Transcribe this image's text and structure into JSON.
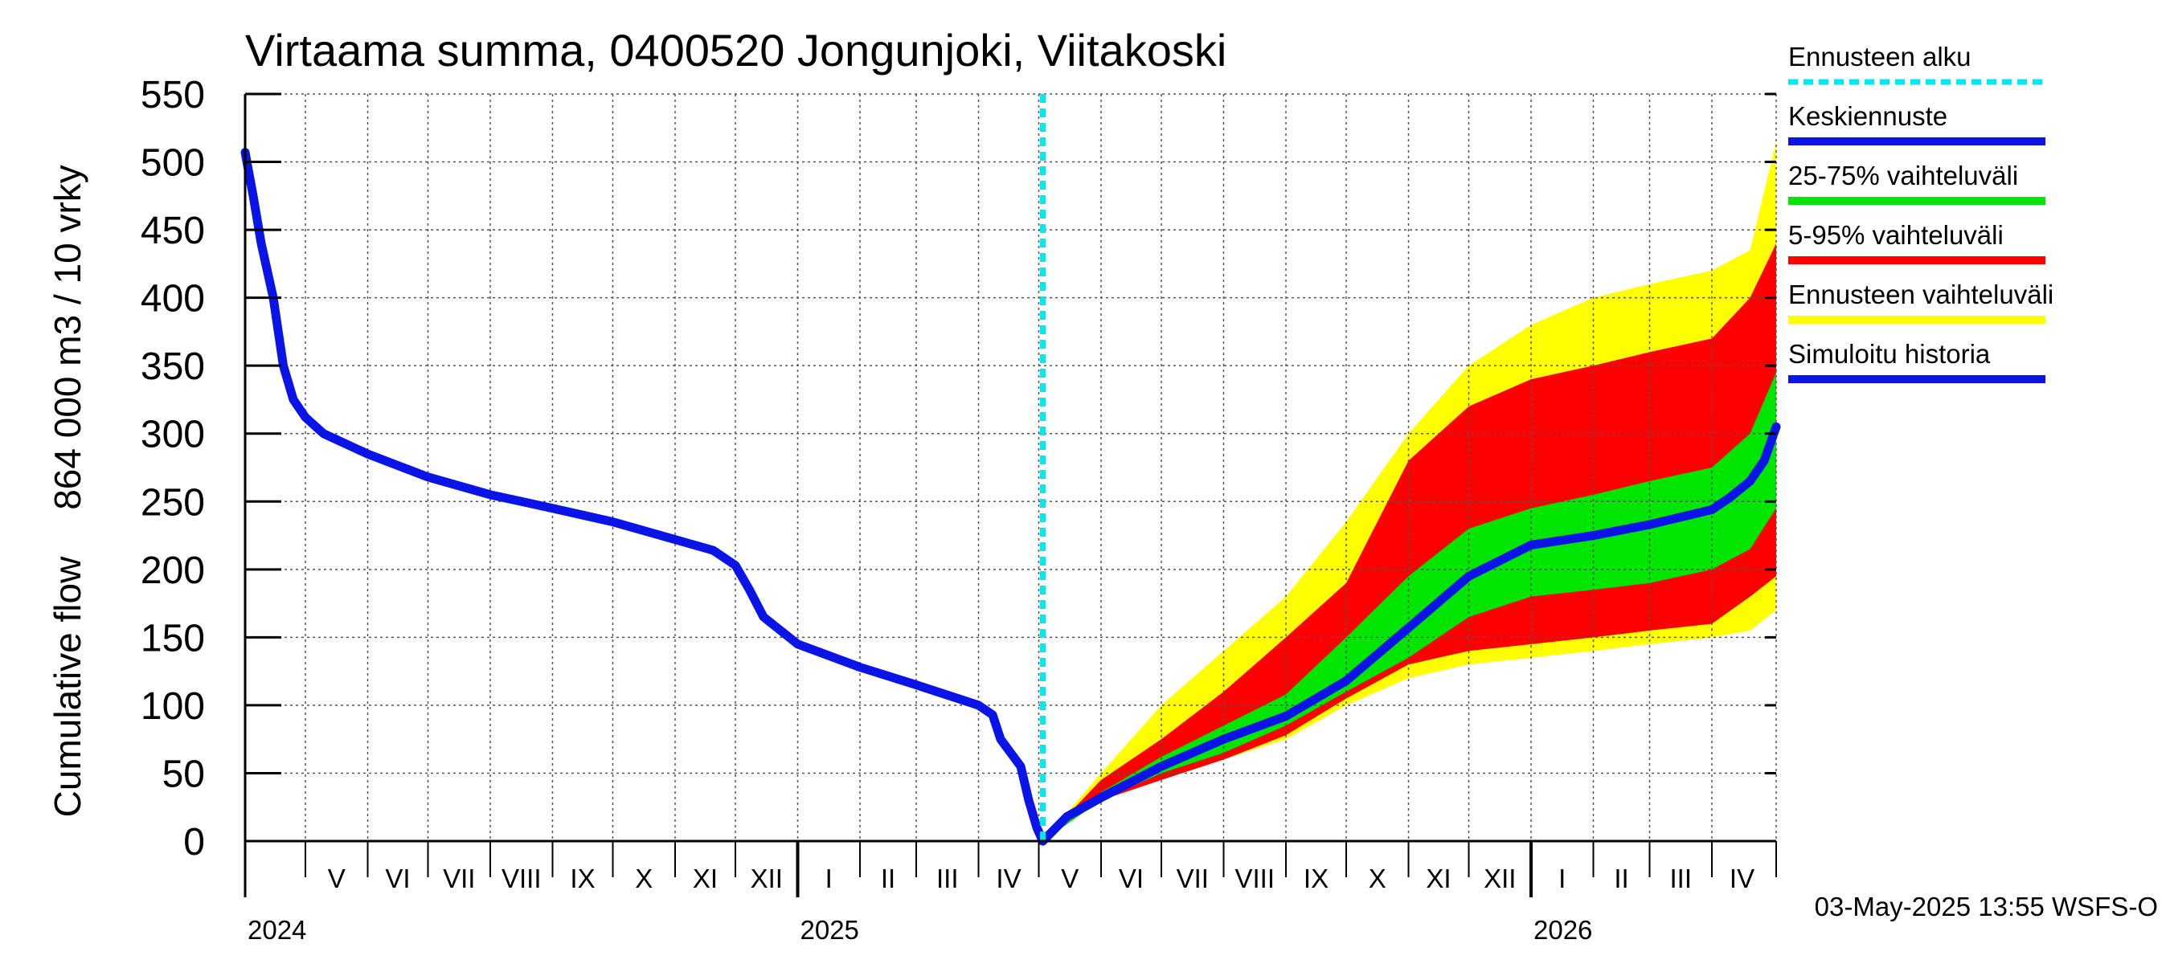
{
  "chart_data": {
    "type": "area",
    "title": "Virtaama summa, 0400520 Jongunjoki, Viitakoski",
    "ylabel_line1": "864 000 m3 / 10 vrky",
    "ylabel_line2": "Cumulative flow",
    "ylim": [
      0,
      550
    ],
    "yticks": [
      0,
      50,
      100,
      150,
      200,
      250,
      300,
      350,
      400,
      450,
      500,
      550
    ],
    "grid": true,
    "x_range": [
      "2024-04-01",
      "2026-05-03"
    ],
    "forecast_start": "2025-05-03",
    "months": [
      {
        "label": "V",
        "start": "2024-05-01",
        "end": "2024-06-01"
      },
      {
        "label": "VI",
        "start": "2024-06-01",
        "end": "2024-07-01"
      },
      {
        "label": "VII",
        "start": "2024-07-01",
        "end": "2024-08-01"
      },
      {
        "label": "VIII",
        "start": "2024-08-01",
        "end": "2024-09-01"
      },
      {
        "label": "IX",
        "start": "2024-09-01",
        "end": "2024-10-01"
      },
      {
        "label": "X",
        "start": "2024-10-01",
        "end": "2024-11-01"
      },
      {
        "label": "XI",
        "start": "2024-11-01",
        "end": "2024-12-01"
      },
      {
        "label": "XII",
        "start": "2024-12-01",
        "end": "2025-01-01"
      },
      {
        "label": "I",
        "start": "2025-01-01",
        "end": "2025-02-01"
      },
      {
        "label": "II",
        "start": "2025-02-01",
        "end": "2025-03-01"
      },
      {
        "label": "III",
        "start": "2025-03-01",
        "end": "2025-04-01"
      },
      {
        "label": "IV",
        "start": "2025-04-01",
        "end": "2025-05-01"
      },
      {
        "label": "V",
        "start": "2025-05-01",
        "end": "2025-06-01"
      },
      {
        "label": "VI",
        "start": "2025-06-01",
        "end": "2025-07-01"
      },
      {
        "label": "VII",
        "start": "2025-07-01",
        "end": "2025-08-01"
      },
      {
        "label": "VIII",
        "start": "2025-08-01",
        "end": "2025-09-01"
      },
      {
        "label": "IX",
        "start": "2025-09-01",
        "end": "2025-10-01"
      },
      {
        "label": "X",
        "start": "2025-10-01",
        "end": "2025-11-01"
      },
      {
        "label": "XI",
        "start": "2025-11-01",
        "end": "2025-12-01"
      },
      {
        "label": "XII",
        "start": "2025-12-01",
        "end": "2026-01-01"
      },
      {
        "label": "I",
        "start": "2026-01-01",
        "end": "2026-02-01"
      },
      {
        "label": "II",
        "start": "2026-02-01",
        "end": "2026-03-01"
      },
      {
        "label": "III",
        "start": "2026-03-01",
        "end": "2026-04-01"
      },
      {
        "label": "IV",
        "start": "2026-04-01",
        "end": "2026-05-01"
      }
    ],
    "years": [
      {
        "label": "2024",
        "date": "2024-04-01"
      },
      {
        "label": "2025",
        "date": "2025-01-01"
      },
      {
        "label": "2026",
        "date": "2026-01-01"
      }
    ],
    "legend": [
      {
        "label": "Ennusteen alku",
        "color": "#00e8f0",
        "style": "dashed"
      },
      {
        "label": "Keskiennuste",
        "color": "#0a14e6",
        "style": "solid"
      },
      {
        "label": "25-75% vaihteluväli",
        "color": "#00e600",
        "style": "solid"
      },
      {
        "label": "5-95% vaihteluväli",
        "color": "#ff0000",
        "style": "solid"
      },
      {
        "label": "Ennusteen vaihteluväli",
        "color": "#ffff00",
        "style": "solid"
      },
      {
        "label": "Simuloitu historia",
        "color": "#0a14e6",
        "style": "solid"
      }
    ],
    "series": [
      {
        "name": "Simuloitu historia",
        "color": "#0a14e6",
        "points": [
          [
            "2024-04-01",
            507
          ],
          [
            "2024-04-05",
            475
          ],
          [
            "2024-04-09",
            440
          ],
          [
            "2024-04-15",
            400
          ],
          [
            "2024-04-20",
            350
          ],
          [
            "2024-04-25",
            325
          ],
          [
            "2024-05-01",
            312
          ],
          [
            "2024-05-10",
            300
          ],
          [
            "2024-06-01",
            285
          ],
          [
            "2024-07-01",
            268
          ],
          [
            "2024-08-01",
            255
          ],
          [
            "2024-09-01",
            245
          ],
          [
            "2024-10-01",
            235
          ],
          [
            "2024-11-01",
            222
          ],
          [
            "2024-11-20",
            214
          ],
          [
            "2024-12-01",
            203
          ],
          [
            "2024-12-08",
            185
          ],
          [
            "2024-12-15",
            165
          ],
          [
            "2025-01-01",
            145
          ],
          [
            "2025-02-01",
            128
          ],
          [
            "2025-03-01",
            115
          ],
          [
            "2025-04-01",
            100
          ],
          [
            "2025-04-08",
            93
          ],
          [
            "2025-04-12",
            75
          ],
          [
            "2025-04-17",
            65
          ],
          [
            "2025-04-22",
            55
          ],
          [
            "2025-04-26",
            30
          ],
          [
            "2025-04-30",
            10
          ],
          [
            "2025-05-03",
            0
          ]
        ]
      },
      {
        "name": "Keskiennuste",
        "color": "#0a14e6",
        "points": [
          [
            "2025-05-03",
            0
          ],
          [
            "2025-05-15",
            18
          ],
          [
            "2025-06-01",
            32
          ],
          [
            "2025-07-01",
            55
          ],
          [
            "2025-08-01",
            75
          ],
          [
            "2025-09-01",
            92
          ],
          [
            "2025-10-01",
            118
          ],
          [
            "2025-11-01",
            157
          ],
          [
            "2025-12-01",
            195
          ],
          [
            "2026-01-01",
            218
          ],
          [
            "2026-02-01",
            225
          ],
          [
            "2026-03-01",
            233
          ],
          [
            "2026-04-01",
            244
          ],
          [
            "2026-04-10",
            253
          ],
          [
            "2026-04-20",
            265
          ],
          [
            "2026-04-27",
            280
          ],
          [
            "2026-05-03",
            305
          ]
        ]
      }
    ],
    "bands": [
      {
        "name": "Ennusteen vaihteluväli",
        "color": "#ffff00",
        "points": [
          [
            "2025-05-03",
            0,
            0
          ],
          [
            "2025-06-01",
            38,
            50
          ],
          [
            "2025-07-01",
            50,
            100
          ],
          [
            "2025-08-01",
            60,
            140
          ],
          [
            "2025-09-01",
            75,
            180
          ],
          [
            "2025-10-01",
            100,
            235
          ],
          [
            "2025-11-01",
            120,
            300
          ],
          [
            "2025-12-01",
            130,
            350
          ],
          [
            "2026-01-01",
            135,
            380
          ],
          [
            "2026-02-01",
            140,
            400
          ],
          [
            "2026-03-01",
            145,
            410
          ],
          [
            "2026-04-01",
            150,
            420
          ],
          [
            "2026-04-20",
            155,
            435
          ],
          [
            "2026-05-03",
            170,
            515
          ]
        ]
      },
      {
        "name": "5-95% vaihteluväli",
        "color": "#ff0000",
        "points": [
          [
            "2025-05-03",
            0,
            0
          ],
          [
            "2025-06-01",
            30,
            45
          ],
          [
            "2025-07-01",
            45,
            75
          ],
          [
            "2025-08-01",
            60,
            110
          ],
          [
            "2025-09-01",
            78,
            150
          ],
          [
            "2025-10-01",
            105,
            190
          ],
          [
            "2025-11-01",
            130,
            280
          ],
          [
            "2025-12-01",
            140,
            320
          ],
          [
            "2026-01-01",
            145,
            340
          ],
          [
            "2026-02-01",
            150,
            350
          ],
          [
            "2026-03-01",
            155,
            360
          ],
          [
            "2026-04-01",
            160,
            370
          ],
          [
            "2026-04-20",
            180,
            400
          ],
          [
            "2026-05-03",
            195,
            440
          ]
        ]
      },
      {
        "name": "25-75% vaihteluväli",
        "color": "#00e600",
        "points": [
          [
            "2025-05-03",
            0,
            0
          ],
          [
            "2025-06-01",
            30,
            36
          ],
          [
            "2025-07-01",
            50,
            62
          ],
          [
            "2025-08-01",
            65,
            85
          ],
          [
            "2025-09-01",
            85,
            108
          ],
          [
            "2025-10-01",
            110,
            150
          ],
          [
            "2025-11-01",
            135,
            195
          ],
          [
            "2025-12-01",
            165,
            230
          ],
          [
            "2026-01-01",
            180,
            245
          ],
          [
            "2026-02-01",
            185,
            255
          ],
          [
            "2026-03-01",
            190,
            265
          ],
          [
            "2026-04-01",
            200,
            275
          ],
          [
            "2026-04-20",
            215,
            300
          ],
          [
            "2026-05-03",
            245,
            345
          ]
        ]
      }
    ]
  },
  "stamp": "03-May-2025 13:55 WSFS-O"
}
